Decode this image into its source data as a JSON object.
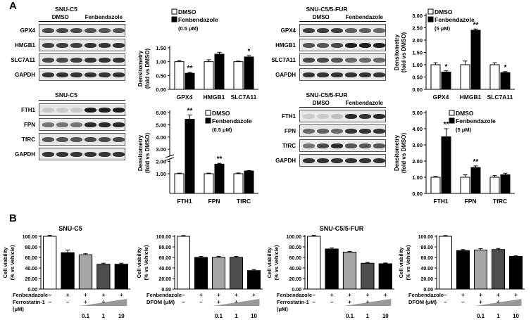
{
  "panel_labels": {
    "a": "A",
    "b": "B"
  },
  "blots": [
    {
      "title": "SNU-C5",
      "condition_left": "DMSO",
      "condition_right": "Fenbendazole",
      "rows": [
        "GPX4",
        "HMGB1",
        "SLC7A11",
        "GAPDH"
      ]
    },
    {
      "title": "SNU-C5/5-FUR",
      "condition_left": "DMSO",
      "condition_right": "Fenbendazole",
      "rows": [
        "GPX4",
        "HMGB1",
        "SLC7A11",
        "GAPDH"
      ]
    },
    {
      "title": "SNU-C5",
      "condition_left": "",
      "condition_right": "",
      "rows": [
        "FTH1",
        "FPN",
        "TfRC",
        "GAPDH"
      ]
    },
    {
      "title": "SNU-C5/5-FUR",
      "condition_left": "DMSO",
      "condition_right": "Fenbendazole",
      "rows": [
        "FTH1",
        "FPN",
        "TfRC",
        "GAPDH"
      ]
    }
  ],
  "colors": {
    "dmso": "#ffffff",
    "fenbendazole": "#000000",
    "light_gray": "#a6a6a6",
    "dark_gray": "#4d4d4d",
    "ramp": "#999999"
  },
  "panel_b": {
    "row_labels": [
      "Fenbendazole",
      "Ferrostatin-1",
      "DFOM (μM)",
      "(μM)"
    ],
    "signs": {
      "minus": "–",
      "plus": "+"
    },
    "doses": [
      "0.1",
      "1",
      "10"
    ]
  },
  "chart_data": [
    {
      "type": "bar",
      "ylabel": "Densitometry\n(fold vs DMSO)",
      "ylim": [
        0,
        1.5
      ],
      "yticks": [
        "0.00",
        "0.50",
        "1.00",
        "1.50"
      ],
      "categories": [
        "GPX4",
        "HMGB1",
        "SLC7A11"
      ],
      "series": [
        {
          "name": "DMSO",
          "values": [
            1.0,
            1.0,
            1.0
          ],
          "errors": [
            0.04,
            0.07,
            0.02
          ]
        },
        {
          "name": "Fenbendazole",
          "values": [
            0.58,
            1.27,
            1.17
          ],
          "errors": [
            0.03,
            0.07,
            0.05
          ]
        }
      ],
      "legend": [
        "DMSO",
        "Fenbendazole",
        "(0.5 μM)"
      ],
      "significance": [
        {
          "category": 0,
          "label": "**"
        },
        {
          "category": 2,
          "label": "*"
        }
      ]
    },
    {
      "type": "bar",
      "ylabel": "Densitometry\n(fold vs DMSO)",
      "ylim": [
        0,
        3.0
      ],
      "yticks": [
        "0.00",
        "0.50",
        "1.00",
        "1.50",
        "2.00",
        "2.50",
        "3.00"
      ],
      "categories": [
        "GPX4",
        "HMGB1",
        "SLC7A11"
      ],
      "series": [
        {
          "name": "DMSO",
          "values": [
            1.0,
            1.0,
            1.0
          ],
          "errors": [
            0.08,
            0.15,
            0.08
          ]
        },
        {
          "name": "Fenbendazole",
          "values": [
            0.7,
            2.4,
            0.68
          ],
          "errors": [
            0.05,
            0.05,
            0.04
          ]
        }
      ],
      "legend": [
        "DMSO",
        "Fenbendazole",
        "(5 μM)"
      ],
      "significance": [
        {
          "category": 0,
          "label": "*"
        },
        {
          "category": 1,
          "label": "**"
        },
        {
          "category": 2,
          "label": "*"
        }
      ]
    },
    {
      "type": "bar",
      "ylabel": "Densitometry\n(fold vs DMSO)",
      "broken_axis": true,
      "ylim": [
        0,
        6.0
      ],
      "yticks": [
        "1.00",
        "2.00",
        "3.00",
        "4.00",
        "5.00",
        "6.00"
      ],
      "categories": [
        "FTH1",
        "FPN",
        "TfRC"
      ],
      "series": [
        {
          "name": "DMSO",
          "values": [
            1.0,
            1.0,
            1.0
          ],
          "errors": [
            0.05,
            0.05,
            0.06
          ]
        },
        {
          "name": "Fenbendazole",
          "values": [
            5.45,
            1.78,
            1.22
          ],
          "errors": [
            0.35,
            0.07,
            0.04
          ]
        }
      ],
      "legend": [
        "DMSO",
        "Fenbendazole",
        "(0.5 μM)"
      ],
      "significance": [
        {
          "category": 0,
          "label": "**"
        },
        {
          "category": 1,
          "label": "**"
        }
      ]
    },
    {
      "type": "bar",
      "ylabel": "Densitometry\n(fold vs DMSO)",
      "ylim": [
        0,
        5.0
      ],
      "yticks": [
        "0.00",
        "1.00",
        "2.00",
        "3.00",
        "4.00",
        "5.00"
      ],
      "categories": [
        "FTH1",
        "FPN",
        "TfRC"
      ],
      "series": [
        {
          "name": "DMSO",
          "values": [
            1.0,
            1.0,
            1.0
          ],
          "errors": [
            0.05,
            0.15,
            0.1
          ]
        },
        {
          "name": "Fenbendazole",
          "values": [
            3.5,
            1.6,
            1.15
          ],
          "errors": [
            0.5,
            0.1,
            0.1
          ]
        }
      ],
      "legend": [
        "DMSO",
        "Fenbendazole",
        "(5 μM)"
      ],
      "significance": [
        {
          "category": 0,
          "label": "**"
        },
        {
          "category": 1,
          "label": "**"
        }
      ]
    },
    {
      "type": "bar",
      "title": "SNU-C5",
      "ylabel": "Cell viability\n(% vs Vehicle)",
      "ylim": [
        0,
        100
      ],
      "yticks": [
        "0.00",
        "20.00",
        "40.00",
        "60.00",
        "80.00",
        "100.00"
      ],
      "categories": [
        "Vehicle",
        "Fenbendazole",
        "Fenbendazole + Ferrostatin-1 0.1",
        "Fenbendazole + Ferrostatin-1 1",
        "Fenbendazole + Ferrostatin-1 10"
      ],
      "values": [
        100,
        69,
        65,
        47,
        47
      ],
      "errors": [
        2,
        5,
        2,
        2,
        2
      ],
      "fills": [
        "dmso",
        "fenbendazole",
        "light_gray",
        "dark_gray",
        "fenbendazole"
      ],
      "treatment": "Ferrostatin-1"
    },
    {
      "type": "bar",
      "ylabel": "Cell viability\n(% vs Vehicle)",
      "ylim": [
        0,
        100
      ],
      "yticks": [
        "0.00",
        "20.00",
        "40.00",
        "60.00",
        "80.00",
        "100.00"
      ],
      "categories": [
        "Vehicle",
        "Fenbendazole",
        "Fenbendazole + DFOM 0.1",
        "Fenbendazole + DFOM 1",
        "Fenbendazole + DFOM 10"
      ],
      "values": [
        100,
        60,
        60,
        60,
        35
      ],
      "errors": [
        1.5,
        2,
        2,
        2,
        2
      ],
      "fills": [
        "dmso",
        "fenbendazole",
        "light_gray",
        "dark_gray",
        "fenbendazole"
      ],
      "treatment": "DFOM (μM)"
    },
    {
      "type": "bar",
      "title": "SNU-C5/5-FUR",
      "ylabel": "Cell viability\n(% vs Vehicle)",
      "ylim": [
        0,
        100
      ],
      "yticks": [
        "0.00",
        "20.00",
        "40.00",
        "60.00",
        "80.00",
        "100.00"
      ],
      "categories": [
        "Vehicle",
        "Fenbendazole",
        "Fenbendazole + Ferrostatin-1 0.1",
        "Fenbendazole + Ferrostatin-1 1",
        "Fenbendazole + Ferrostatin-1 10"
      ],
      "values": [
        100,
        76,
        70,
        49,
        48
      ],
      "errors": [
        2,
        2,
        1.5,
        1.5,
        1.5
      ],
      "fills": [
        "dmso",
        "fenbendazole",
        "light_gray",
        "dark_gray",
        "fenbendazole"
      ],
      "treatment": "Ferrostatin-1"
    },
    {
      "type": "bar",
      "ylabel": "Cell viability\n(% vs Vehicle)",
      "ylim": [
        0,
        100
      ],
      "yticks": [
        "0.00",
        "20.00",
        "40.00",
        "60.00",
        "80.00",
        "100.00"
      ],
      "categories": [
        "Vehicle",
        "Fenbendazole",
        "Fenbendazole + DFOM 0.1",
        "Fenbendazole + DFOM 1",
        "Fenbendazole + DFOM 10"
      ],
      "values": [
        100,
        73,
        74,
        75,
        62
      ],
      "errors": [
        1.5,
        2,
        2.5,
        2,
        1
      ],
      "fills": [
        "dmso",
        "fenbendazole",
        "light_gray",
        "dark_gray",
        "fenbendazole"
      ],
      "treatment": "DFOM (μM)"
    }
  ]
}
